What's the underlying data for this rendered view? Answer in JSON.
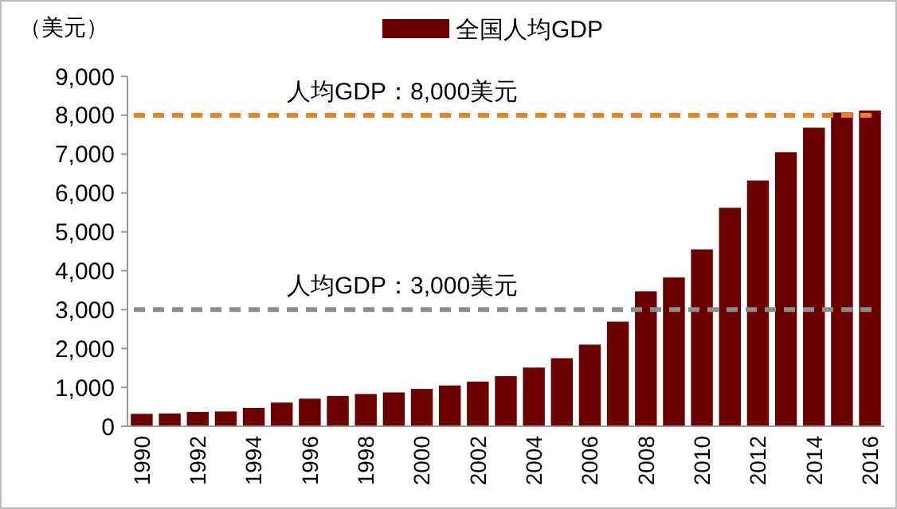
{
  "chart_data": {
    "type": "bar",
    "ylabel": "（美元）",
    "categories": [
      "1990",
      null,
      "1992",
      null,
      "1994",
      null,
      "1996",
      null,
      "1998",
      null,
      "2000",
      null,
      "2002",
      null,
      "2004",
      null,
      "2006",
      null,
      "2008",
      null,
      "2010",
      null,
      "2012",
      null,
      "2014",
      null,
      "2016"
    ],
    "series": [
      {
        "name": "全国人均GDP",
        "color": "#6b0000",
        "values": [
          320,
          330,
          370,
          380,
          470,
          610,
          710,
          780,
          830,
          870,
          960,
          1050,
          1150,
          1290,
          1510,
          1750,
          2100,
          2690,
          3470,
          3830,
          4550,
          5620,
          6320,
          7050,
          7680,
          8070,
          8120
        ]
      }
    ],
    "ylim": [
      0,
      9000
    ],
    "yticks": [
      {
        "value": 0,
        "label": "0"
      },
      {
        "value": 1000,
        "label": "1,000"
      },
      {
        "value": 2000,
        "label": "2,000"
      },
      {
        "value": 3000,
        "label": "3,000"
      },
      {
        "value": 4000,
        "label": "4,000"
      },
      {
        "value": 5000,
        "label": "5,000"
      },
      {
        "value": 6000,
        "label": "6,000"
      },
      {
        "value": 7000,
        "label": "7,000"
      },
      {
        "value": 8000,
        "label": "8,000"
      },
      {
        "value": 9000,
        "label": "9,000"
      }
    ],
    "ref_lines": [
      {
        "axis": "y",
        "value": 8000,
        "label": "人均GDP：8,000美元",
        "color": "#f07f1f",
        "line_style": "dashed"
      },
      {
        "axis": "y",
        "value": 3000,
        "label": "人均GDP：3,000美元",
        "color": "#8c8c8c",
        "line_style": "dashed"
      }
    ],
    "legend": "top",
    "grid": false
  }
}
